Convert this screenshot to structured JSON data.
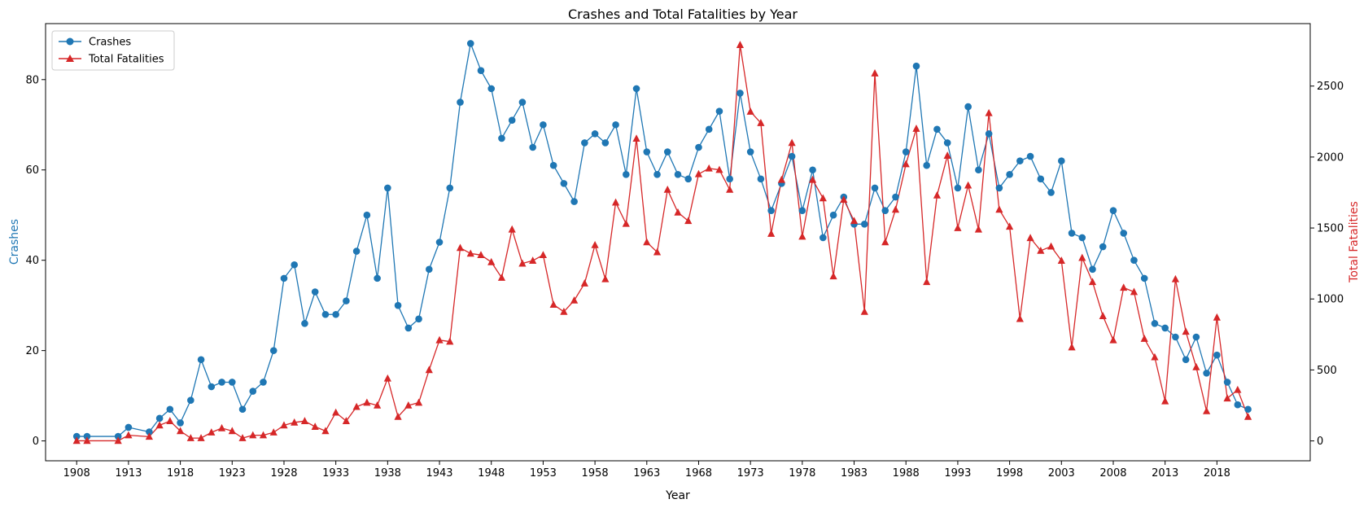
{
  "chart_data": {
    "type": "line",
    "title": "Crashes and Total Fatalities by Year",
    "xlabel": "Year",
    "ylabel_left": "Crashes",
    "ylabel_right": "Total Fatalities",
    "x_ticks": [
      1908,
      1913,
      1918,
      1923,
      1928,
      1933,
      1938,
      1943,
      1948,
      1953,
      1958,
      1963,
      1968,
      1973,
      1978,
      1983,
      1988,
      1993,
      1998,
      2003,
      2008,
      2013,
      2018
    ],
    "y_left_ticks": [
      0,
      20,
      40,
      60,
      80
    ],
    "y_right_ticks": [
      0,
      500,
      1000,
      1500,
      2000,
      2500
    ],
    "xlim": [
      1905,
      2027
    ],
    "y_left_lim": [
      -4.4,
      92.4
    ],
    "y_right_lim": [
      -140,
      2940
    ],
    "grid": false,
    "legend_position": "top-left",
    "colors": {
      "crashes": "#1f77b4",
      "fatalities": "#d62728"
    },
    "x": [
      1908,
      1909,
      1912,
      1913,
      1915,
      1916,
      1917,
      1918,
      1919,
      1920,
      1921,
      1922,
      1923,
      1924,
      1925,
      1926,
      1927,
      1928,
      1929,
      1930,
      1931,
      1932,
      1933,
      1934,
      1935,
      1936,
      1937,
      1938,
      1939,
      1940,
      1941,
      1942,
      1943,
      1944,
      1945,
      1946,
      1947,
      1948,
      1949,
      1950,
      1951,
      1952,
      1953,
      1954,
      1955,
      1956,
      1957,
      1958,
      1959,
      1960,
      1961,
      1962,
      1963,
      1964,
      1965,
      1966,
      1967,
      1968,
      1969,
      1970,
      1971,
      1972,
      1973,
      1974,
      1975,
      1976,
      1977,
      1978,
      1979,
      1980,
      1981,
      1982,
      1983,
      1984,
      1985,
      1986,
      1987,
      1988,
      1989,
      1990,
      1991,
      1992,
      1993,
      1994,
      1995,
      1996,
      1997,
      1998,
      1999,
      2000,
      2001,
      2002,
      2003,
      2004,
      2005,
      2006,
      2007,
      2008,
      2009,
      2010,
      2011,
      2012,
      2013,
      2014,
      2015,
      2016,
      2017,
      2018,
      2019,
      2020,
      2021
    ],
    "series": [
      {
        "name": "Crashes",
        "axis": "left",
        "marker": "circle",
        "values": [
          1,
          1,
          1,
          3,
          2,
          5,
          7,
          4,
          9,
          18,
          12,
          13,
          13,
          7,
          11,
          13,
          20,
          36,
          39,
          26,
          33,
          28,
          28,
          31,
          42,
          50,
          36,
          56,
          30,
          25,
          27,
          38,
          44,
          56,
          75,
          88,
          82,
          78,
          67,
          71,
          75,
          65,
          70,
          61,
          57,
          53,
          66,
          68,
          66,
          70,
          59,
          78,
          64,
          59,
          64,
          59,
          58,
          65,
          69,
          73,
          58,
          77,
          64,
          58,
          51,
          57,
          63,
          51,
          60,
          45,
          50,
          54,
          48,
          48,
          56,
          51,
          54,
          64,
          83,
          61,
          69,
          66,
          56,
          74,
          60,
          68,
          56,
          59,
          62,
          63,
          58,
          55,
          62,
          46,
          45,
          38,
          43,
          51,
          46,
          40,
          36,
          26,
          25,
          23,
          18,
          23,
          15,
          19,
          13,
          8,
          7
        ]
      },
      {
        "name": "Total Fatalities",
        "axis": "right",
        "marker": "triangle",
        "values": [
          1,
          1,
          1,
          40,
          30,
          110,
          140,
          70,
          20,
          20,
          60,
          90,
          70,
          20,
          40,
          40,
          60,
          110,
          130,
          140,
          100,
          70,
          200,
          140,
          240,
          270,
          250,
          440,
          170,
          250,
          270,
          500,
          710,
          700,
          1360,
          1320,
          1310,
          1260,
          1150,
          1490,
          1250,
          1270,
          1310,
          960,
          910,
          990,
          1110,
          1380,
          1140,
          1680,
          1530,
          2130,
          1400,
          1330,
          1770,
          1610,
          1550,
          1880,
          1920,
          1910,
          1770,
          2790,
          2320,
          2240,
          1460,
          1840,
          2100,
          1440,
          1840,
          1710,
          1160,
          1700,
          1550,
          910,
          2590,
          1400,
          1630,
          1950,
          2200,
          1120,
          1730,
          2010,
          1500,
          1800,
          1490,
          2310,
          1630,
          1510,
          860,
          1430,
          1340,
          1370,
          1270,
          660,
          1290,
          1120,
          880,
          710,
          1080,
          1050,
          720,
          590,
          280,
          1140,
          770,
          520,
          210,
          870,
          300,
          360,
          170
        ]
      }
    ]
  }
}
